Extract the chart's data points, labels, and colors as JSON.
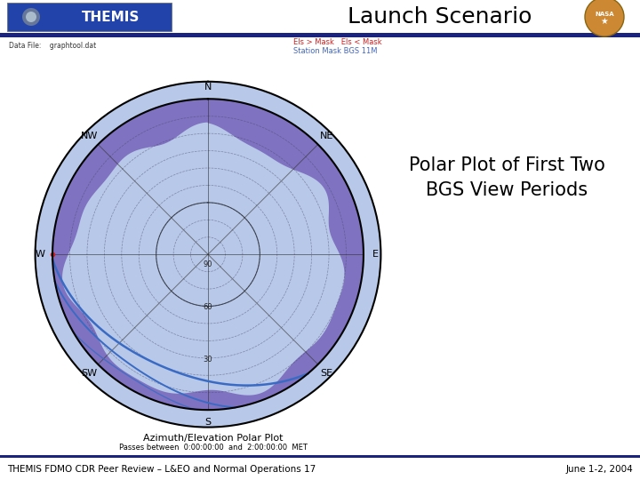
{
  "title": "Launch Scenario",
  "subtitle_right": "Polar Plot of First Two\nBGS View Periods",
  "data_file_label": "Data File:    graphtool.dat",
  "legend_line1": "Els > Mask   Els < Mask",
  "legend_line2": "Station Mask BGS 11M",
  "polar_title": "Azimuth/Elevation Polar Plot",
  "polar_subtitle": "Passes between  0:00:00:00  and  2:00:00:00  MET",
  "footer_left": "THEMIS FDMO CDR Peer Review – L&EO and Normal Operations 17",
  "footer_right": "June 1-2, 2004",
  "bg_color": "#ffffff",
  "header_bar_color": "#1a237e",
  "footer_bar_color": "#1a237e",
  "polar_bg_light": "#b8c8e8",
  "polar_mask_color": "#7766bb",
  "track1_color": "#3a6bc4",
  "track2_color": "#3a6bc4",
  "legend_color_above": "#cc2222",
  "legend_color_below": "#4466bb"
}
